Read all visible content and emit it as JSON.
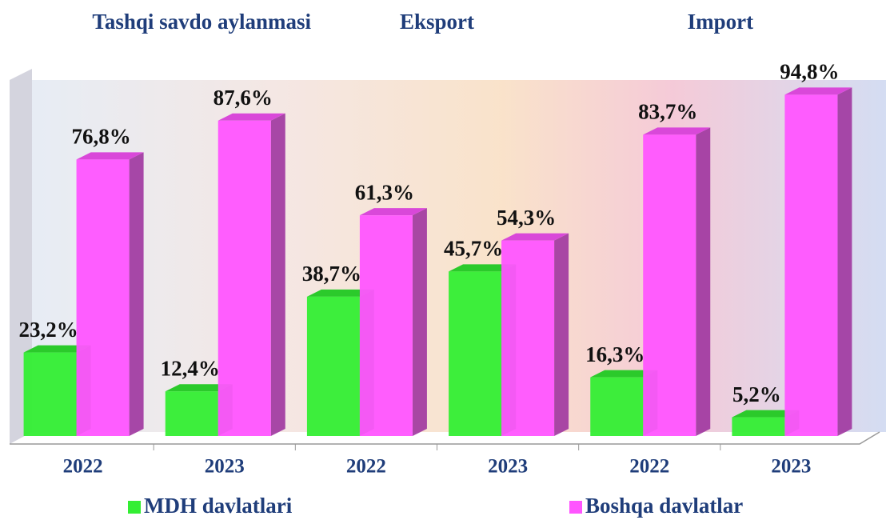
{
  "chart_data": {
    "type": "bar3d",
    "group_titles": [
      "Tashqi savdo aylanmasi",
      "Eksport",
      "Import"
    ],
    "categories": [
      "2022",
      "2023",
      "2022",
      "2023",
      "2022",
      "2023"
    ],
    "ylim": [
      0,
      100
    ],
    "series": [
      {
        "name": "MDH davlatlari",
        "color": "#33ee33",
        "values": [
          23.2,
          12.4,
          38.7,
          45.7,
          16.3,
          5.2
        ],
        "value_labels": [
          "23,2%",
          "12,4%",
          "38,7%",
          "45,7%",
          "16,3%",
          "5,2%"
        ]
      },
      {
        "name": "Boshqa davlatlar",
        "color": "#ff55ff",
        "values": [
          76.8,
          87.6,
          61.3,
          54.3,
          83.7,
          94.8
        ],
        "value_labels": [
          "76,8%",
          "87,6%",
          "61,3%",
          "54,3%",
          "83,7%",
          "94,8%"
        ]
      }
    ]
  }
}
